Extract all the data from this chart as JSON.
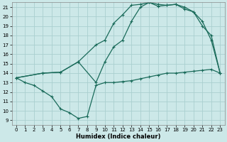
{
  "xlabel": "Humidex (Indice chaleur)",
  "bg_color": "#cce8e8",
  "grid_color": "#aacfcf",
  "line_color": "#1a6b5a",
  "xlim": [
    -0.5,
    23.5
  ],
  "ylim": [
    8.5,
    21.5
  ],
  "xticks": [
    0,
    1,
    2,
    3,
    4,
    5,
    6,
    7,
    8,
    9,
    10,
    11,
    12,
    13,
    14,
    15,
    16,
    17,
    18,
    19,
    20,
    21,
    22,
    23
  ],
  "yticks": [
    9,
    10,
    11,
    12,
    13,
    14,
    15,
    16,
    17,
    18,
    19,
    20,
    21
  ],
  "line1_x": [
    0,
    1,
    2,
    3,
    4,
    5,
    6,
    7,
    8,
    9,
    10,
    11,
    12,
    13,
    14,
    15,
    16,
    17,
    18,
    19,
    20,
    21,
    22,
    23
  ],
  "line1_y": [
    13.5,
    13.0,
    12.7,
    12.1,
    11.5,
    10.2,
    9.8,
    9.2,
    9.4,
    12.7,
    13.0,
    13.0,
    13.1,
    13.2,
    13.4,
    13.6,
    13.8,
    14.0,
    14.0,
    14.1,
    14.2,
    14.3,
    14.4,
    14.0
  ],
  "line2_x": [
    0,
    3,
    5,
    7,
    9,
    10,
    11,
    12,
    13,
    14,
    15,
    16,
    17,
    18,
    19,
    20,
    21,
    22,
    23
  ],
  "line2_y": [
    13.5,
    14.0,
    14.1,
    15.2,
    17.0,
    17.5,
    19.3,
    20.2,
    21.2,
    21.3,
    21.5,
    21.3,
    21.2,
    21.3,
    21.0,
    20.5,
    19.0,
    18.0,
    14.0
  ],
  "line3_x": [
    0,
    3,
    5,
    7,
    9,
    10,
    11,
    12,
    13,
    14,
    15,
    16,
    17,
    18,
    19,
    20,
    21,
    22,
    23
  ],
  "line3_y": [
    13.5,
    14.0,
    14.1,
    15.2,
    13.0,
    15.2,
    16.8,
    17.5,
    19.5,
    21.0,
    21.5,
    21.1,
    21.2,
    21.3,
    20.8,
    20.5,
    19.5,
    17.5,
    14.0
  ]
}
